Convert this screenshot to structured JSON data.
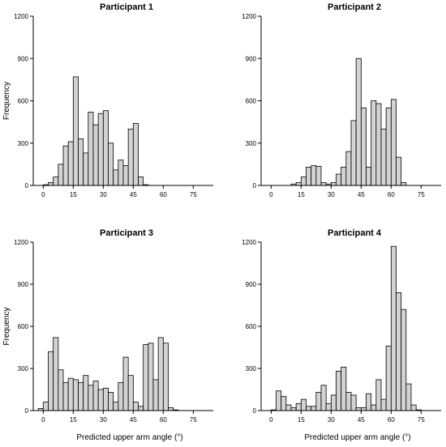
{
  "chart_data": [
    {
      "type": "bar",
      "title": "Participant 1",
      "ylabel": "Frequency",
      "xlabel": "",
      "bin_width": 2.5,
      "bin_starts": [
        0,
        2.5,
        5,
        7.5,
        10,
        12.5,
        15,
        17.5,
        20,
        22.5,
        25,
        27.5,
        30,
        32.5,
        35,
        37.5,
        40,
        42.5,
        45,
        47.5,
        50
      ],
      "values": [
        5,
        20,
        60,
        150,
        280,
        310,
        770,
        330,
        230,
        520,
        430,
        510,
        530,
        300,
        110,
        180,
        140,
        400,
        440,
        60,
        5
      ],
      "xlim": [
        -5,
        85
      ],
      "ylim": [
        0,
        1200
      ],
      "xticks": [
        0,
        15,
        30,
        45,
        60,
        75
      ],
      "yticks": [
        0,
        300,
        600,
        900,
        1200
      ]
    },
    {
      "type": "bar",
      "title": "Participant 2",
      "ylabel": "",
      "xlabel": "",
      "bin_width": 2.5,
      "bin_starts": [
        10,
        12.5,
        15,
        17.5,
        20,
        22.5,
        25,
        27.5,
        30,
        32.5,
        35,
        37.5,
        40,
        42.5,
        45,
        47.5,
        50,
        52.5,
        55,
        57.5,
        60,
        62.5,
        65
      ],
      "values": [
        10,
        20,
        60,
        130,
        140,
        135,
        20,
        10,
        20,
        80,
        130,
        240,
        460,
        900,
        550,
        130,
        600,
        580,
        400,
        550,
        610,
        200,
        20
      ],
      "xlim": [
        -5,
        85
      ],
      "ylim": [
        0,
        1200
      ],
      "xticks": [
        0,
        15,
        30,
        45,
        60,
        75
      ],
      "yticks": [
        0,
        300,
        600,
        900,
        1200
      ]
    },
    {
      "type": "bar",
      "title": "Participant 3",
      "ylabel": "Frequency",
      "xlabel": "Predicted upper arm angle (°)",
      "bin_width": 2.5,
      "bin_starts": [
        -2.5,
        0,
        2.5,
        5,
        7.5,
        10,
        12.5,
        15,
        17.5,
        20,
        22.5,
        25,
        27.5,
        30,
        32.5,
        35,
        37.5,
        40,
        42.5,
        45,
        47.5,
        50,
        52.5,
        55,
        57.5,
        60,
        62.5,
        65
      ],
      "values": [
        15,
        60,
        420,
        520,
        290,
        200,
        230,
        220,
        200,
        250,
        180,
        210,
        150,
        160,
        130,
        60,
        200,
        380,
        250,
        60,
        30,
        470,
        480,
        220,
        520,
        480,
        20,
        5
      ],
      "xlim": [
        -5,
        85
      ],
      "ylim": [
        0,
        1200
      ],
      "xticks": [
        0,
        15,
        30,
        45,
        60,
        75
      ],
      "yticks": [
        0,
        300,
        600,
        900,
        1200
      ]
    },
    {
      "type": "bar",
      "title": "Participant 4",
      "ylabel": "",
      "xlabel": "Predicted upper arm angle (°)",
      "bin_width": 2.5,
      "bin_starts": [
        0,
        2.5,
        5,
        7.5,
        10,
        12.5,
        15,
        17.5,
        20,
        22.5,
        25,
        27.5,
        30,
        32.5,
        35,
        37.5,
        40,
        42.5,
        45,
        47.5,
        50,
        52.5,
        55,
        57.5,
        60,
        62.5,
        65,
        67.5,
        70,
        72.5
      ],
      "values": [
        5,
        140,
        100,
        40,
        20,
        50,
        80,
        30,
        30,
        130,
        180,
        50,
        110,
        280,
        310,
        130,
        110,
        20,
        20,
        120,
        40,
        220,
        80,
        460,
        1170,
        840,
        720,
        190,
        40,
        5
      ],
      "xlim": [
        -5,
        85
      ],
      "ylim": [
        0,
        1200
      ],
      "xticks": [
        0,
        15,
        30,
        45,
        60,
        75
      ],
      "yticks": [
        0,
        300,
        600,
        900,
        1200
      ]
    }
  ]
}
